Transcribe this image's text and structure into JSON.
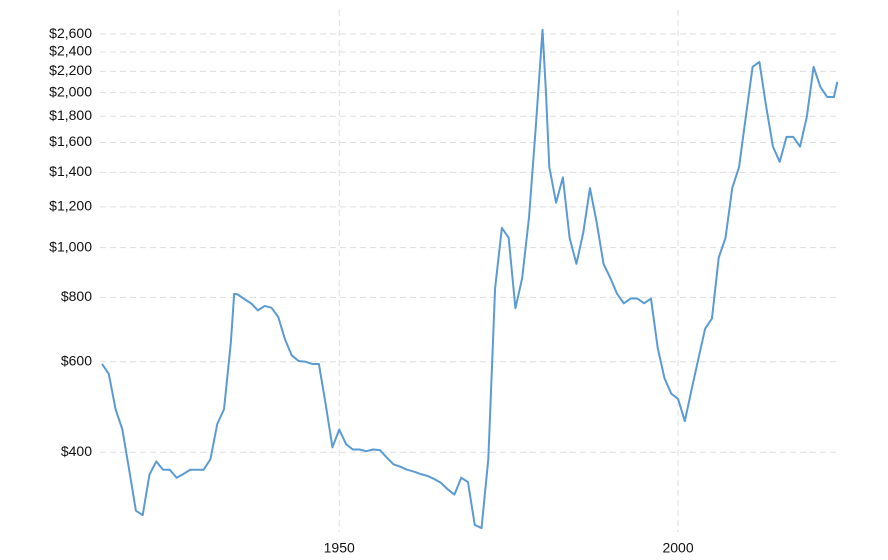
{
  "chart_data": {
    "type": "line",
    "log_scale_y": true,
    "grid": true,
    "color": "#5b9bd3",
    "xlim": [
      1914.7,
      2023.6
    ],
    "xticks": [
      1950,
      2000
    ],
    "ylim": [
      280,
      2800
    ],
    "yticks": [
      {
        "value": 400,
        "label": "$400"
      },
      {
        "value": 600,
        "label": "$600"
      },
      {
        "value": 800,
        "label": "$800"
      },
      {
        "value": 1000,
        "label": "$1,000"
      },
      {
        "value": 1200,
        "label": "$1,200"
      },
      {
        "value": 1400,
        "label": "$1,400"
      },
      {
        "value": 1600,
        "label": "$1,600"
      },
      {
        "value": 1800,
        "label": "$1,800"
      },
      {
        "value": 2000,
        "label": "$2,000"
      },
      {
        "value": 2200,
        "label": "$2,200"
      },
      {
        "value": 2400,
        "label": "$2,400"
      },
      {
        "value": 2600,
        "label": "$2,600"
      }
    ],
    "x": [
      1915,
      1916,
      1917,
      1918,
      1919,
      1920,
      1921,
      1922,
      1923,
      1924,
      1925,
      1926,
      1927,
      1928,
      1929,
      1930,
      1931,
      1932,
      1933,
      1934,
      1934.5,
      1935,
      1936,
      1937,
      1938,
      1939,
      1940,
      1941,
      1942,
      1943,
      1944,
      1945,
      1946,
      1947,
      1948,
      1949,
      1950,
      1951,
      1952,
      1953,
      1954,
      1955,
      1956,
      1957,
      1958,
      1959,
      1960,
      1961,
      1962,
      1963,
      1964,
      1965,
      1966,
      1967,
      1968,
      1969,
      1970,
      1971,
      1972,
      1973,
      1974,
      1975,
      1976,
      1977,
      1978,
      1979,
      1980,
      1980.5,
      1981,
      1982,
      1983,
      1984,
      1985,
      1986,
      1987,
      1988,
      1989,
      1990,
      1991,
      1992,
      1993,
      1994,
      1995,
      1996,
      1997,
      1998,
      1999,
      2000,
      2001,
      2002,
      2003,
      2004,
      2005,
      2006,
      2007,
      2008,
      2009,
      2010,
      2011,
      2012,
      2013,
      2014,
      2015,
      2016,
      2017,
      2018,
      2019,
      2020,
      2021,
      2022,
      2023,
      2023.5
    ],
    "values": [
      594,
      568,
      485,
      443,
      370,
      308,
      302,
      362,
      384,
      370,
      370,
      357,
      363,
      370,
      370,
      370,
      388,
      454,
      485,
      652,
      813,
      811,
      794,
      779,
      755,
      770,
      764,
      733,
      663,
      617,
      602,
      600,
      594,
      594,
      496,
      409,
      443,
      415,
      405,
      405,
      402,
      405,
      404,
      391,
      379,
      375,
      370,
      367,
      363,
      360,
      355,
      349,
      339,
      331,
      357,
      350,
      289,
      285,
      388,
      833,
      1092,
      1045,
      762,
      873,
      1143,
      1713,
      2650,
      2008,
      1434,
      1222,
      1369,
      1043,
      930,
      1067,
      1305,
      1117,
      930,
      873,
      813,
      779,
      796,
      796,
      779,
      796,
      638,
      557,
      520,
      508,
      460,
      530,
      608,
      696,
      728,
      956,
      1044,
      1306,
      1434,
      1797,
      2245,
      2295,
      1880,
      1571,
      1468,
      1641,
      1641,
      1571,
      1797,
      2245,
      2052,
      1962,
      1962,
      2100
    ]
  }
}
